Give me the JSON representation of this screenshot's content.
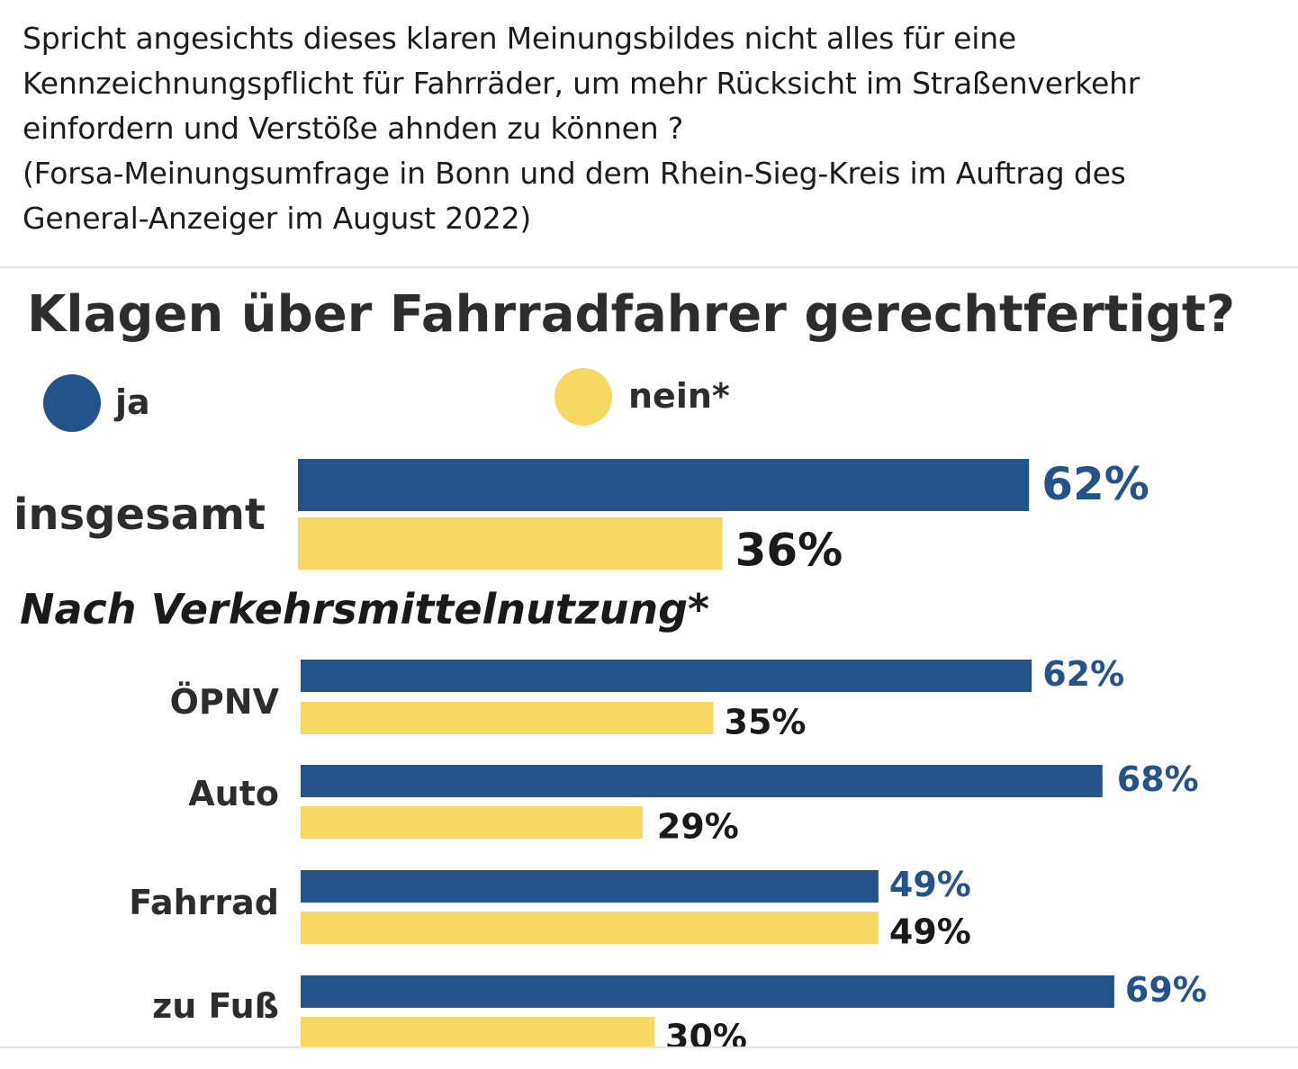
{
  "post": {
    "lines": [
      "Spricht angesichts dieses klaren Meinungsbildes nicht alles für eine",
      "Kennzeichnungspflicht für Fahrräder, um mehr Rücksicht im Straßenverkehr",
      "einfordern und Verstöße ahnden zu können ?",
      "(Forsa-Meinungsumfrage in Bonn und dem Rhein-Sieg-Kreis im Auftrag des",
      "General-Anzeiger im  August 2022)"
    ]
  },
  "chart_data": {
    "type": "bar",
    "orientation": "horizontal",
    "title": "Klagen über Fahrradfahrer gerechtfertigt?",
    "subtitle": "Nach Verkehrsmittelnutzung*",
    "legend": [
      {
        "name": "ja",
        "color": "#23538a"
      },
      {
        "name": "nein*",
        "color": "#f7d862"
      }
    ],
    "legend_position": "top",
    "unit": "%",
    "categories": [
      "insgesamt",
      "ÖPNV",
      "Auto",
      "Fahrrad",
      "zu Fuß"
    ],
    "series": [
      {
        "name": "ja",
        "color": "#23538a",
        "values": [
          62,
          62,
          68,
          49,
          69
        ]
      },
      {
        "name": "nein*",
        "color": "#f7d862",
        "values": [
          36,
          35,
          29,
          49,
          30
        ]
      }
    ],
    "grid": false
  }
}
